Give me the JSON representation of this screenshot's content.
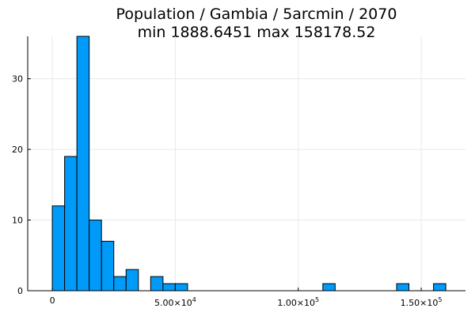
{
  "chart_data": {
    "type": "bar",
    "title_line1": "Population / Gambia / 5arcmin / 2070",
    "title_line2": "min 1888.6451  max 158178.52",
    "xlabel": "",
    "ylabel": "",
    "bin_width": 5000,
    "bins": [
      {
        "start": 0,
        "end": 5000,
        "count": 12
      },
      {
        "start": 5000,
        "end": 10000,
        "count": 19
      },
      {
        "start": 10000,
        "end": 15000,
        "count": 36
      },
      {
        "start": 15000,
        "end": 20000,
        "count": 10
      },
      {
        "start": 20000,
        "end": 25000,
        "count": 7
      },
      {
        "start": 25000,
        "end": 30000,
        "count": 2
      },
      {
        "start": 30000,
        "end": 35000,
        "count": 3
      },
      {
        "start": 40000,
        "end": 45000,
        "count": 2
      },
      {
        "start": 45000,
        "end": 50000,
        "count": 1
      },
      {
        "start": 50000,
        "end": 55000,
        "count": 1
      },
      {
        "start": 110000,
        "end": 115000,
        "count": 1
      },
      {
        "start": 140000,
        "end": 145000,
        "count": 1
      },
      {
        "start": 155000,
        "end": 160000,
        "count": 1
      }
    ],
    "xlim": [
      -10000,
      168000
    ],
    "ylim": [
      0,
      36
    ],
    "x_ticks": [
      {
        "value": 0,
        "label": "0",
        "exp": ""
      },
      {
        "value": 50000,
        "label": "5.00×10",
        "exp": "4"
      },
      {
        "value": 100000,
        "label": "1.00×10",
        "exp": "5"
      },
      {
        "value": 150000,
        "label": "1.50×10",
        "exp": "5"
      }
    ],
    "y_ticks": [
      {
        "value": 0,
        "label": "0"
      },
      {
        "value": 10,
        "label": "10"
      },
      {
        "value": 20,
        "label": "20"
      },
      {
        "value": 30,
        "label": "30"
      }
    ],
    "grid": true,
    "legend": "none",
    "bar_color": "#009af9"
  }
}
